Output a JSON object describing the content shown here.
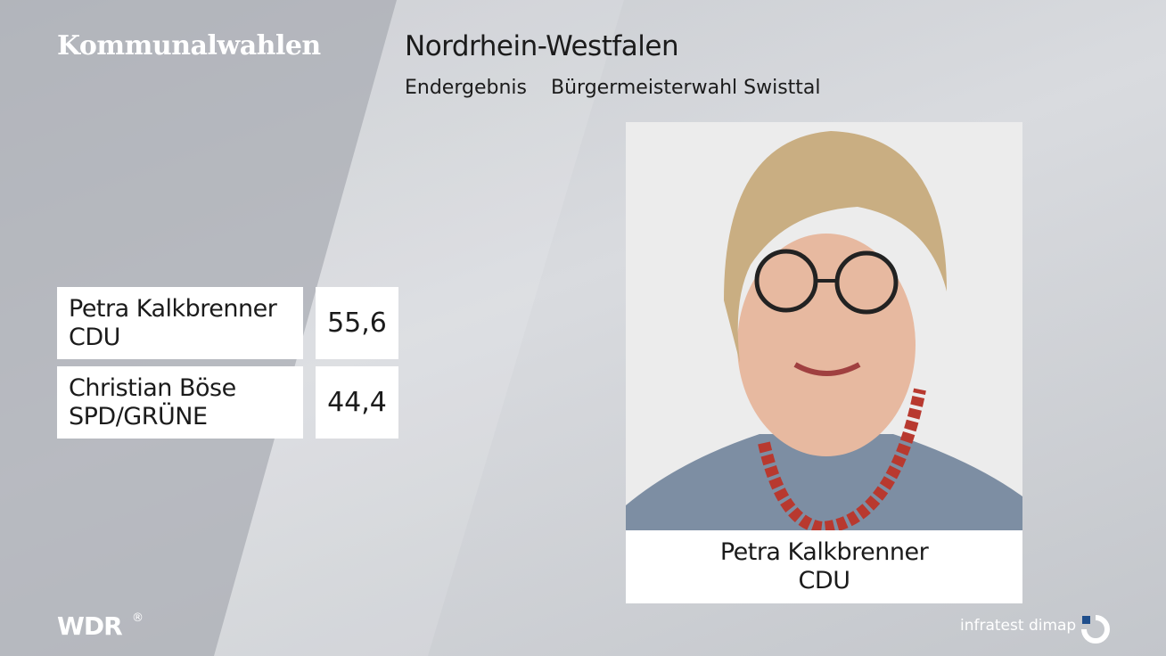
{
  "header": {
    "brand": "Kommunalwahlen",
    "region": "Nordrhein-Westfalen",
    "status": "Endergebnis",
    "election": "Bürgermeisterwahl Swisttal"
  },
  "results": [
    {
      "name": "Petra Kalkbrenner",
      "party": "CDU",
      "value": "55,6"
    },
    {
      "name": "Christian Böse",
      "party": "SPD/GRÜNE",
      "value": "44,4"
    }
  ],
  "winner": {
    "name": "Petra Kalkbrenner",
    "party": "CDU"
  },
  "footer": {
    "broadcaster": "WDR",
    "registered": "®",
    "pollster": "infratest dimap"
  }
}
